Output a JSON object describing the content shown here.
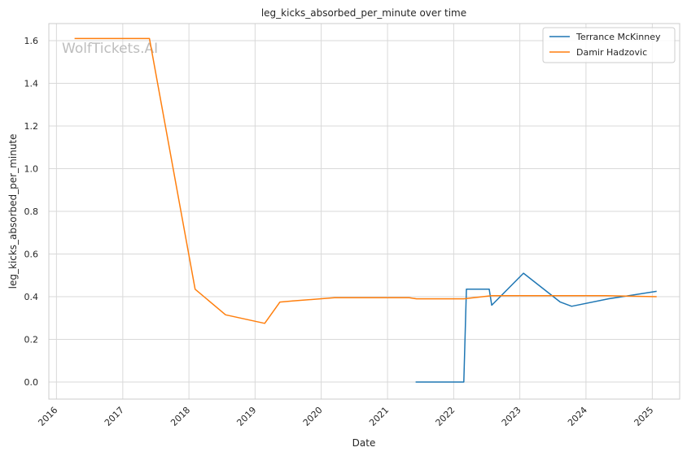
{
  "chart_data": {
    "type": "line",
    "title": "leg_kicks_absorbed_per_minute over time",
    "xlabel": "Date",
    "ylabel": "leg_kicks_absorbed_per_minute",
    "watermark": "WolfTickets.AI",
    "grid": true,
    "legend_position": "top-right",
    "xlim": [
      "2015-11-20",
      "2025-06-01"
    ],
    "ylim": [
      -0.08,
      1.68
    ],
    "x_ticks": [
      "2016",
      "2017",
      "2018",
      "2019",
      "2020",
      "2021",
      "2022",
      "2023",
      "2024",
      "2025"
    ],
    "y_ticks": [
      "0.0",
      "0.2",
      "0.4",
      "0.6",
      "0.8",
      "1.0",
      "1.2",
      "1.4",
      "1.6"
    ],
    "series": [
      {
        "name": "Terrance McKinney",
        "color": "#1f77b4",
        "points": [
          {
            "x": "2021-06-05",
            "y": 0.0
          },
          {
            "x": "2022-02-26",
            "y": 0.0
          },
          {
            "x": "2022-03-12",
            "y": 0.435
          },
          {
            "x": "2022-07-16",
            "y": 0.435
          },
          {
            "x": "2022-07-30",
            "y": 0.36
          },
          {
            "x": "2023-01-21",
            "y": 0.51
          },
          {
            "x": "2023-08-12",
            "y": 0.375
          },
          {
            "x": "2023-10-14",
            "y": 0.355
          },
          {
            "x": "2024-05-04",
            "y": 0.39
          },
          {
            "x": "2025-01-25",
            "y": 0.425
          }
        ]
      },
      {
        "name": "Damir Hadzovic",
        "color": "#ff7f0e",
        "points": [
          {
            "x": "2016-04-10",
            "y": 1.61
          },
          {
            "x": "2017-05-28",
            "y": 1.61
          },
          {
            "x": "2018-02-04",
            "y": 0.435
          },
          {
            "x": "2018-07-22",
            "y": 0.315
          },
          {
            "x": "2019-02-23",
            "y": 0.275
          },
          {
            "x": "2019-05-18",
            "y": 0.375
          },
          {
            "x": "2019-07-27",
            "y": 0.38
          },
          {
            "x": "2020-03-14",
            "y": 0.395
          },
          {
            "x": "2021-05-01",
            "y": 0.395
          },
          {
            "x": "2021-06-10",
            "y": 0.39
          },
          {
            "x": "2022-02-26",
            "y": 0.39
          },
          {
            "x": "2022-07-30",
            "y": 0.405
          },
          {
            "x": "2024-04-20",
            "y": 0.405
          },
          {
            "x": "2025-01-25",
            "y": 0.4
          }
        ]
      }
    ]
  }
}
